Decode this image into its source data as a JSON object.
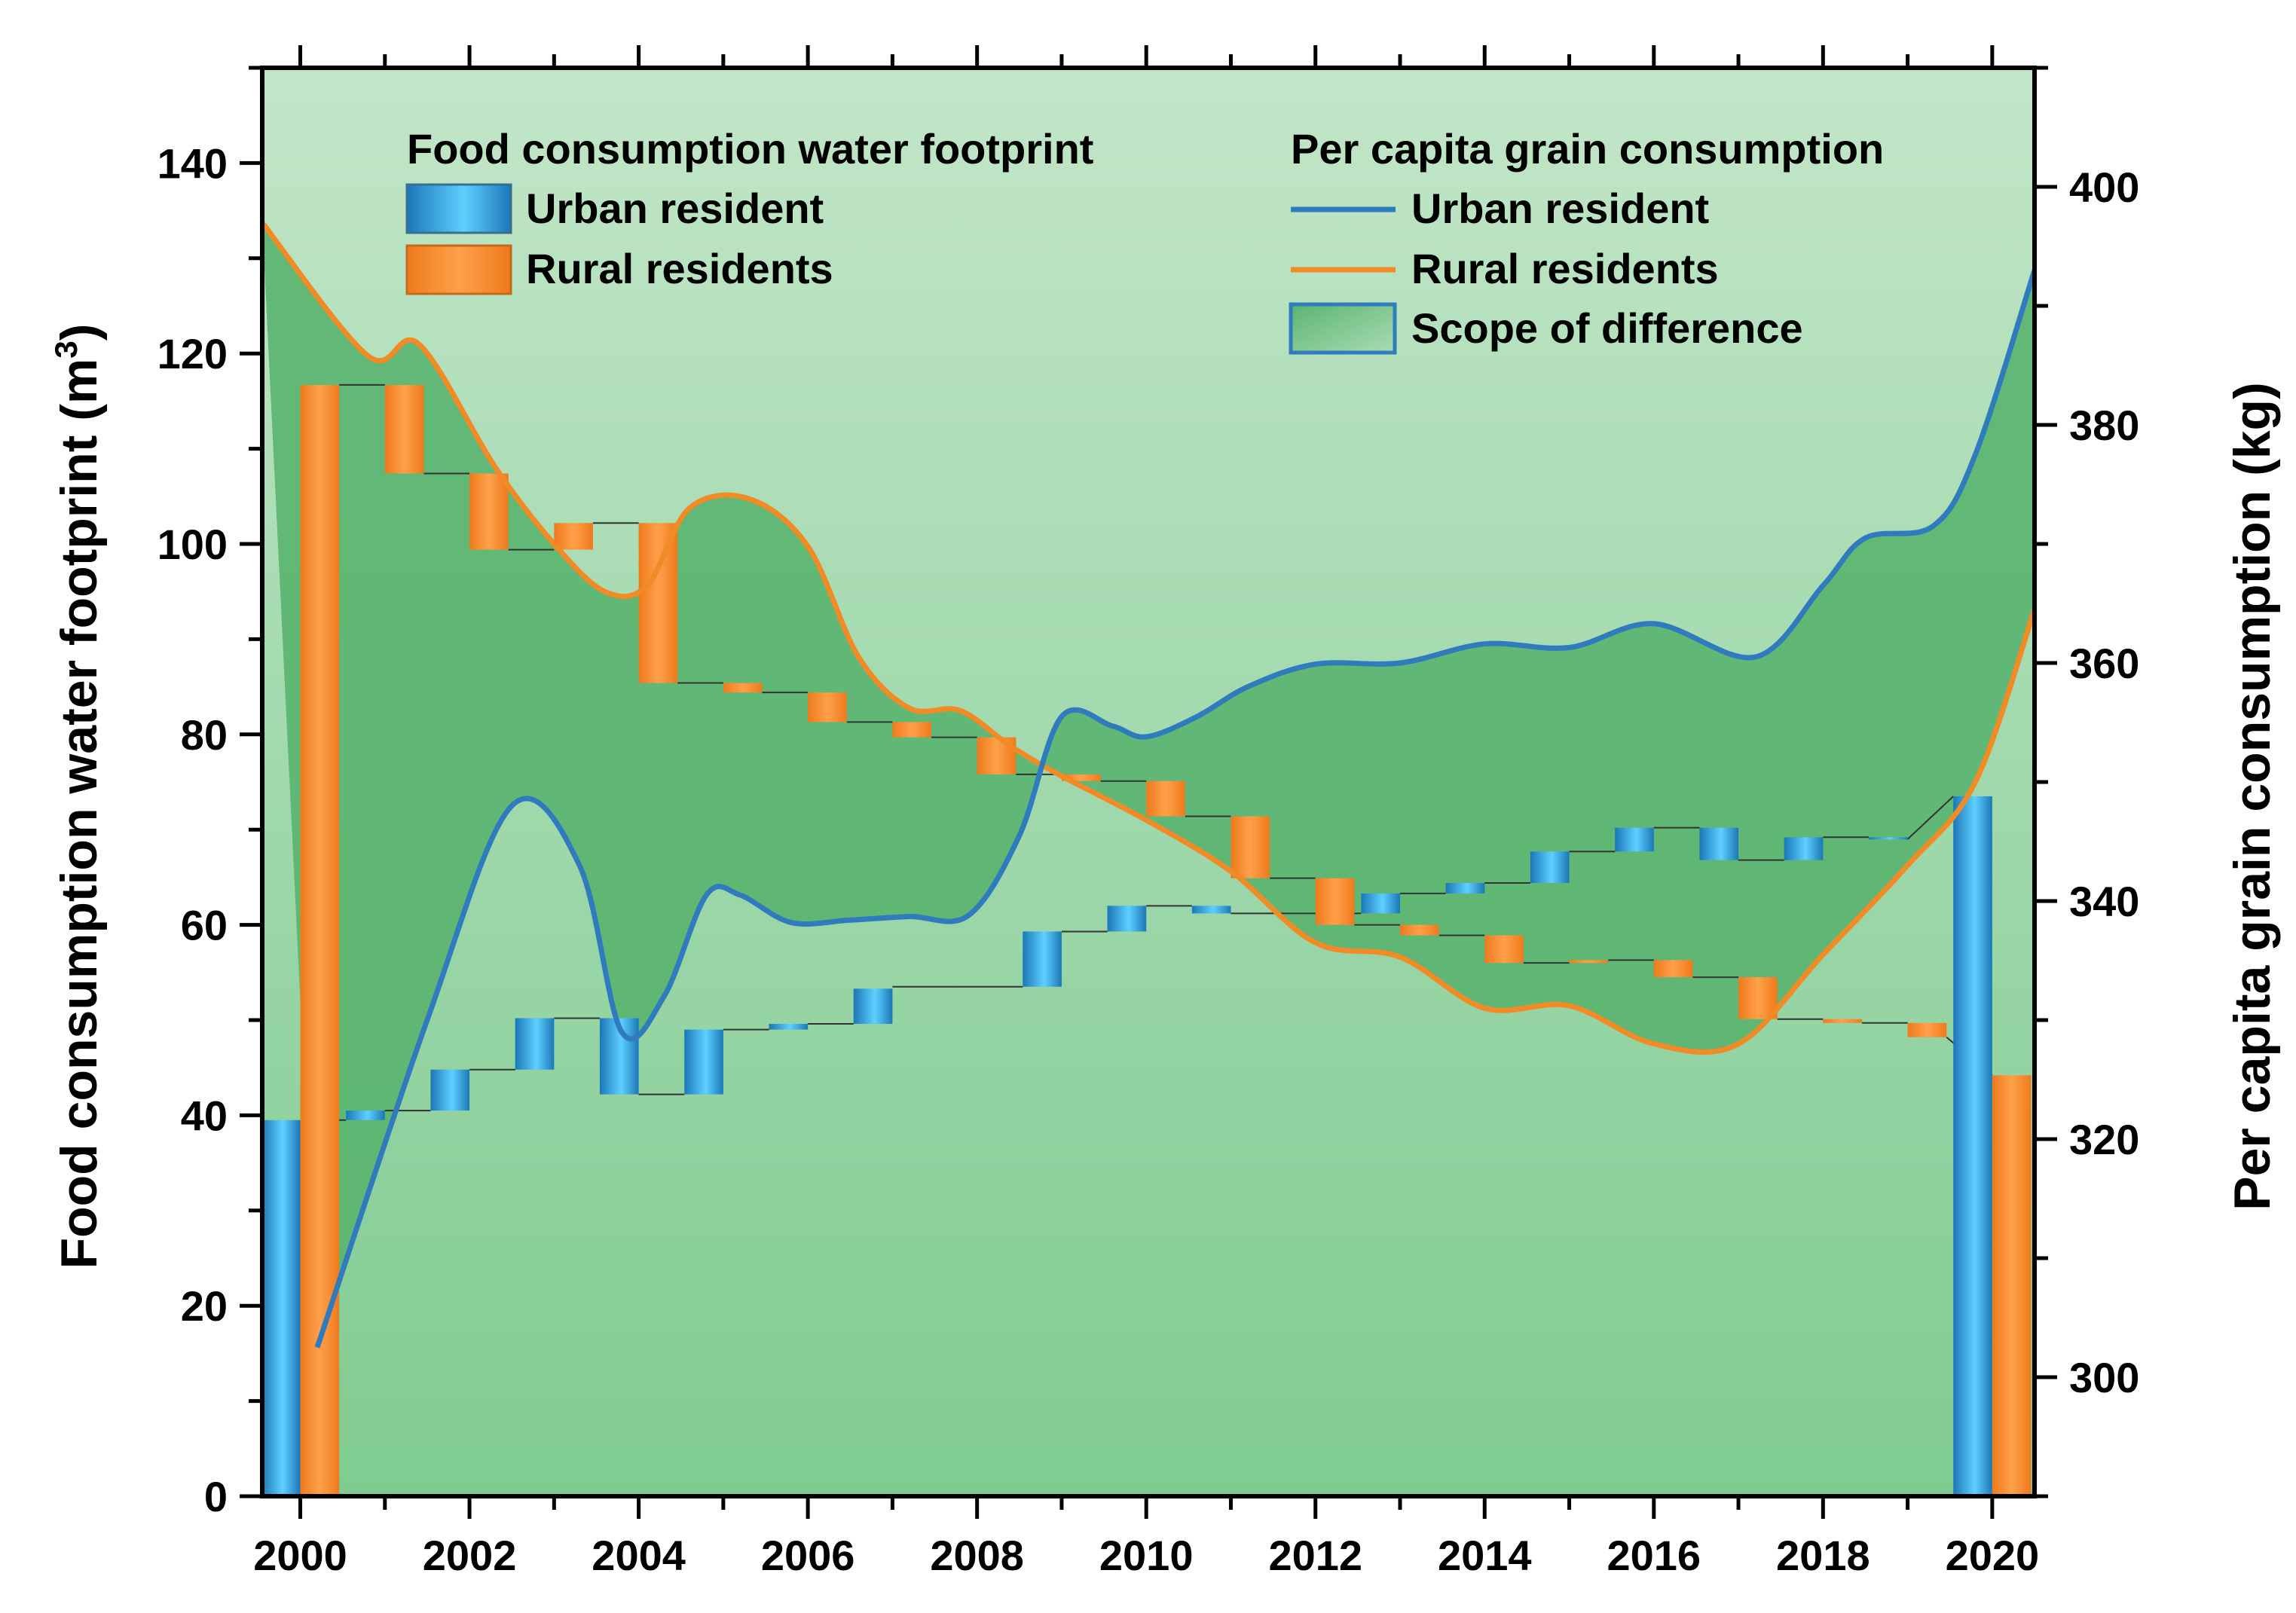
{
  "chart_data": {
    "type": "waterfall-with-lines",
    "title": "",
    "xlabel": "",
    "ylabel_left": "Food consumption water footprint (m",
    "ylabel_left_superscript": "3",
    "ylabel_left_suffix": ")",
    "ylabel_right": "Per capita grain consumption (kg)",
    "xlim": [
      1999.55,
      2020.5
    ],
    "ylim_left": [
      0,
      150
    ],
    "ylim_right": [
      290,
      410
    ],
    "x_ticks": [
      2000,
      2002,
      2004,
      2006,
      2008,
      2010,
      2012,
      2014,
      2016,
      2018,
      2020
    ],
    "y_left_ticks": [
      0,
      20,
      40,
      60,
      80,
      100,
      120,
      140
    ],
    "y_right_ticks": [
      300,
      320,
      340,
      360,
      380,
      400
    ],
    "colors": {
      "background_top": "#c2e6c8",
      "background_bottom": "#7fcb91",
      "difference_fill": "#5bb470",
      "urban_bar_light": "#5ed0ff",
      "urban_bar_dark": "#1b77b8",
      "rural_bar_light": "#ffa04a",
      "rural_bar_dark": "#ee7a1c",
      "urban_line": "#2f7bbd",
      "rural_line": "#f28a26",
      "connector": "#333333"
    },
    "legend": {
      "left_heading": "Food consumption water footprint",
      "left_items": [
        "Urban resident",
        "Rural residents"
      ],
      "right_heading": "Per capita grain consumption",
      "right_items": [
        "Urban resident",
        "Rural residents",
        "Scope of difference"
      ]
    },
    "water_footprint_urban": {
      "name": "Urban resident",
      "start_year": 2000,
      "start_value": 39.5,
      "steps": [
        {
          "year": 2001,
          "from": 39.5,
          "to": 40.5
        },
        {
          "year": 2002,
          "from": 40.5,
          "to": 44.8
        },
        {
          "year": 2003,
          "from": 44.8,
          "to": 50.2
        },
        {
          "year": 2004,
          "from": 50.2,
          "to": 42.2
        },
        {
          "year": 2005,
          "from": 42.2,
          "to": 49.0
        },
        {
          "year": 2006,
          "from": 49.0,
          "to": 49.6
        },
        {
          "year": 2007,
          "from": 49.6,
          "to": 53.3
        },
        {
          "year": 2009,
          "from": 53.5,
          "to": 59.3
        },
        {
          "year": 2010,
          "from": 59.3,
          "to": 62.0
        },
        {
          "year": 2011,
          "from": 62.0,
          "to": 61.2
        },
        {
          "year": 2013,
          "from": 61.2,
          "to": 63.3
        },
        {
          "year": 2014,
          "from": 63.3,
          "to": 64.4
        },
        {
          "year": 2015,
          "from": 64.4,
          "to": 67.7
        },
        {
          "year": 2016,
          "from": 67.7,
          "to": 70.2
        },
        {
          "year": 2017,
          "from": 70.2,
          "to": 66.8
        },
        {
          "year": 2018,
          "from": 66.8,
          "to": 69.2
        },
        {
          "year": 2019,
          "from": 69.2,
          "to": 69.0
        }
      ],
      "end_year": 2020,
      "end_value": 73.5
    },
    "water_footprint_rural": {
      "name": "Rural residents",
      "start_year": 2000,
      "start_value": 116.7,
      "steps": [
        {
          "year": 2001,
          "from": 116.7,
          "to": 107.4
        },
        {
          "year": 2002,
          "from": 107.4,
          "to": 99.4
        },
        {
          "year": 2003,
          "from": 99.4,
          "to": 102.2
        },
        {
          "year": 2004,
          "from": 102.2,
          "to": 85.4
        },
        {
          "year": 2005,
          "from": 85.4,
          "to": 84.4
        },
        {
          "year": 2006,
          "from": 84.4,
          "to": 81.3
        },
        {
          "year": 2007,
          "from": 81.3,
          "to": 79.7
        },
        {
          "year": 2008,
          "from": 79.7,
          "to": 75.8
        },
        {
          "year": 2009,
          "from": 75.8,
          "to": 75.1
        },
        {
          "year": 2010,
          "from": 75.1,
          "to": 71.4
        },
        {
          "year": 2011,
          "from": 71.4,
          "to": 64.9
        },
        {
          "year": 2012,
          "from": 64.9,
          "to": 60.0
        },
        {
          "year": 2013,
          "from": 60.0,
          "to": 58.9
        },
        {
          "year": 2014,
          "from": 58.9,
          "to": 56.0
        },
        {
          "year": 2015,
          "from": 56.0,
          "to": 56.3
        },
        {
          "year": 2016,
          "from": 56.3,
          "to": 54.5
        },
        {
          "year": 2017,
          "from": 54.5,
          "to": 50.1
        },
        {
          "year": 2018,
          "from": 50.1,
          "to": 49.7
        },
        {
          "year": 2019,
          "from": 49.7,
          "to": 48.2
        }
      ],
      "end_year": 2020,
      "end_value": 44.2
    },
    "grain_consumption_urban": {
      "name": "Urban resident",
      "points": [
        [
          2000.2,
          302.5
        ],
        [
          2001.5,
          330
        ],
        [
          2002.5,
          348
        ],
        [
          2003.3,
          343
        ],
        [
          2003.8,
          329
        ],
        [
          2004.3,
          332
        ],
        [
          2004.8,
          340.5
        ],
        [
          2005.2,
          340.5
        ],
        [
          2005.8,
          338.2
        ],
        [
          2006.5,
          338.4
        ],
        [
          2007.2,
          338.7
        ],
        [
          2007.9,
          338.8
        ],
        [
          2008.5,
          345.5
        ],
        [
          2009.0,
          355.5
        ],
        [
          2009.6,
          354.7
        ],
        [
          2010.0,
          353.8
        ],
        [
          2010.6,
          355.5
        ],
        [
          2011.2,
          358.0
        ],
        [
          2012.0,
          359.9
        ],
        [
          2013.0,
          360.0
        ],
        [
          2014.0,
          361.6
        ],
        [
          2015.0,
          361.3
        ],
        [
          2016.0,
          363.3
        ],
        [
          2017.2,
          360.5
        ],
        [
          2018.0,
          366.5
        ],
        [
          2018.5,
          370.5
        ],
        [
          2019.3,
          371.5
        ],
        [
          2019.8,
          377.5
        ],
        [
          2020.5,
          393.0
        ]
      ]
    },
    "grain_consumption_rural": {
      "name": "Rural residents",
      "points": [
        [
          1999.55,
          397
        ],
        [
          2000.8,
          385.8
        ],
        [
          2001.4,
          386.8
        ],
        [
          2002.3,
          376.5
        ],
        [
          2003.0,
          370.0
        ],
        [
          2003.6,
          366.0
        ],
        [
          2004.1,
          366.5
        ],
        [
          2004.6,
          373.0
        ],
        [
          2005.3,
          373.8
        ],
        [
          2006.0,
          369.8
        ],
        [
          2006.6,
          360.5
        ],
        [
          2007.2,
          356.2
        ],
        [
          2007.8,
          356.0
        ],
        [
          2008.4,
          353.0
        ],
        [
          2009.0,
          350.5
        ],
        [
          2010.0,
          346.8
        ],
        [
          2011.0,
          342.5
        ],
        [
          2012.0,
          336.5
        ],
        [
          2013.0,
          335.3
        ],
        [
          2014.0,
          331.0
        ],
        [
          2015.0,
          331.2
        ],
        [
          2016.0,
          328.0
        ],
        [
          2017.0,
          328.0
        ],
        [
          2018.0,
          335.5
        ],
        [
          2019.0,
          343.0
        ],
        [
          2019.8,
          350.0
        ],
        [
          2020.5,
          364.5
        ]
      ]
    }
  }
}
